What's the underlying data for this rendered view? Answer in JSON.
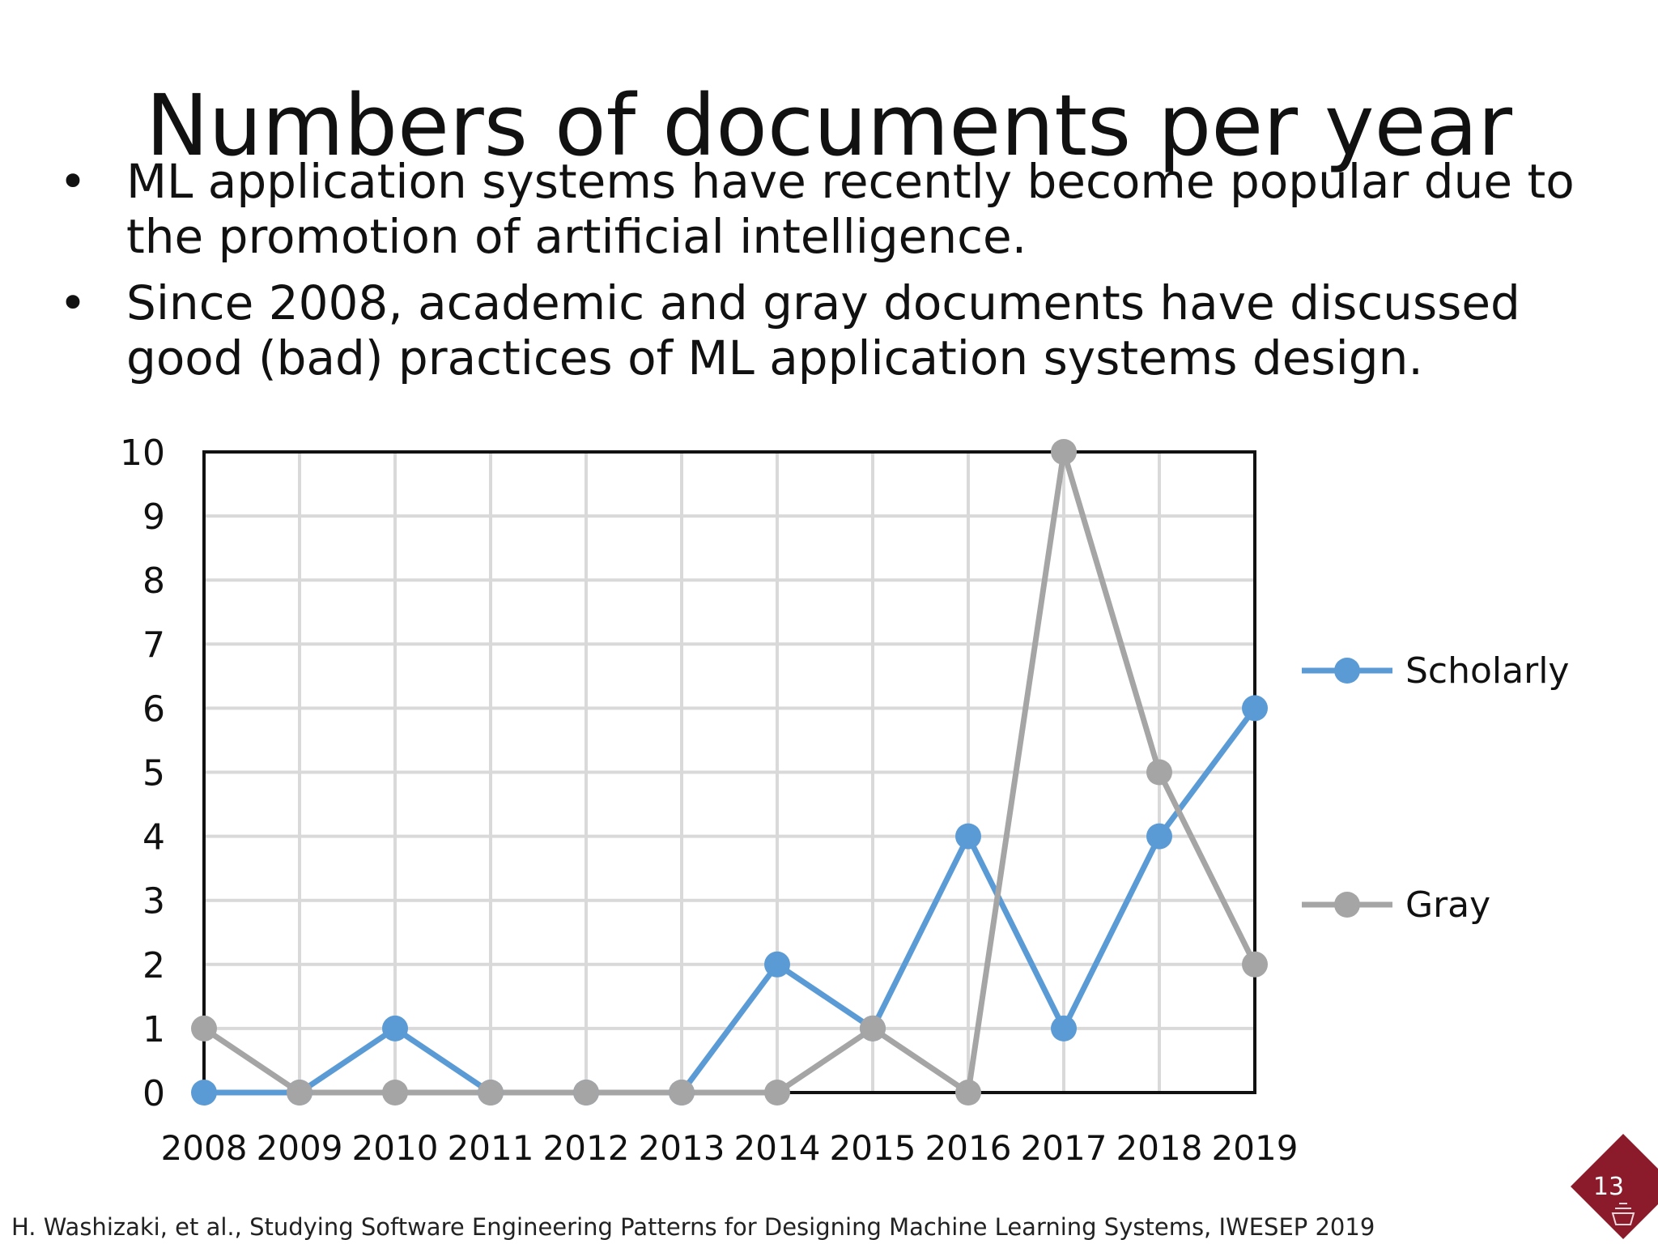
{
  "slide": {
    "title": "Numbers of documents per year",
    "bullets": [
      "ML application systems have recently become popular due to the promotion of artificial intelligence.",
      "Since 2008, academic and gray documents have discussed good (bad) practices of ML application systems design."
    ],
    "bullet_symbol": "•",
    "footer": "H. Washizaki, et al., Studying Software Engineering Patterns for Designing Machine Learning Systems, IWESEP 2019",
    "page_number": "13",
    "logo_icon": "university-crest-diamond-icon",
    "logo_color": "#8b1a2b"
  },
  "chart_data": {
    "type": "line",
    "categories": [
      "2008",
      "2009",
      "2010",
      "2011",
      "2012",
      "2013",
      "2014",
      "2015",
      "2016",
      "2017",
      "2018",
      "2019"
    ],
    "series": [
      {
        "name": "Scholarly",
        "color": "#5b9bd5",
        "values": [
          0,
          0,
          1,
          0,
          0,
          0,
          2,
          1,
          4,
          1,
          4,
          6
        ]
      },
      {
        "name": "Gray",
        "color": "#a5a5a5",
        "values": [
          1,
          0,
          0,
          0,
          0,
          0,
          0,
          1,
          0,
          10,
          5,
          2
        ]
      }
    ],
    "ylim": [
      0,
      10
    ],
    "yticks": [
      0,
      1,
      2,
      3,
      4,
      5,
      6,
      7,
      8,
      9,
      10
    ],
    "title": "",
    "xlabel": "",
    "ylabel": "",
    "grid": true,
    "legend": "right"
  }
}
